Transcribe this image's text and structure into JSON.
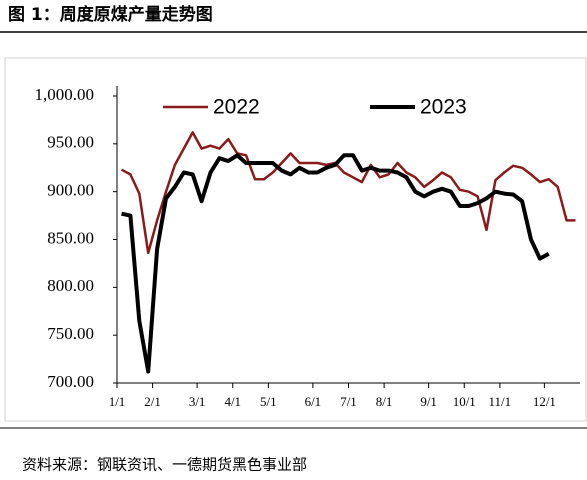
{
  "chart_data": {
    "type": "line",
    "title": "图 1：周度原煤产量走势图",
    "source": "资料来源：钢联资讯、一德期货黑色事业部",
    "categories": [
      "1/1",
      null,
      null,
      null,
      "2/1",
      null,
      null,
      null,
      null,
      "3/1",
      null,
      null,
      null,
      "4/1",
      null,
      null,
      null,
      "5/1",
      null,
      null,
      null,
      null,
      "6/1",
      null,
      null,
      null,
      "7/1",
      null,
      null,
      null,
      "8/1",
      null,
      null,
      null,
      null,
      "9/1",
      null,
      null,
      null,
      "10/1",
      null,
      null,
      null,
      "11/1",
      null,
      null,
      null,
      null,
      "12/1",
      null,
      null,
      null
    ],
    "series": [
      {
        "name": "2022",
        "color": "#8b1a1a",
        "width": 2.5,
        "values": [
          923,
          918,
          898,
          836,
          870,
          900,
          928,
          945,
          962,
          945,
          948,
          945,
          955,
          940,
          938,
          913,
          913,
          920,
          930,
          940,
          930,
          930,
          930,
          928,
          930,
          920,
          915,
          910,
          928,
          915,
          918,
          930,
          920,
          915,
          905,
          912,
          920,
          915,
          902,
          900,
          895,
          860,
          912,
          920,
          927,
          925,
          918,
          910,
          913,
          905,
          870,
          870
        ]
      },
      {
        "name": "2023",
        "color": "#000000",
        "width": 4,
        "values": [
          877,
          875,
          765,
          712,
          840,
          893,
          905,
          920,
          918,
          890,
          920,
          935,
          932,
          938,
          930,
          930,
          930,
          930,
          922,
          918,
          925,
          920,
          920,
          925,
          928,
          938,
          938,
          922,
          925,
          922,
          922,
          920,
          915,
          900,
          895,
          900,
          903,
          900,
          885,
          885,
          888,
          893,
          900,
          898,
          897,
          890,
          850,
          830,
          835,
          null,
          null,
          null
        ]
      }
    ],
    "ylim": [
      700,
      1000
    ],
    "yticks": [
      {
        "value": 700,
        "label": "700.00"
      },
      {
        "value": 750,
        "label": "750.00"
      },
      {
        "value": 800,
        "label": "800.00"
      },
      {
        "value": 850,
        "label": "850.00"
      },
      {
        "value": 900,
        "label": "900.00"
      },
      {
        "value": 950,
        "label": "950.00"
      },
      {
        "value": 1000,
        "label": "1,000.00"
      }
    ],
    "grid": false
  }
}
